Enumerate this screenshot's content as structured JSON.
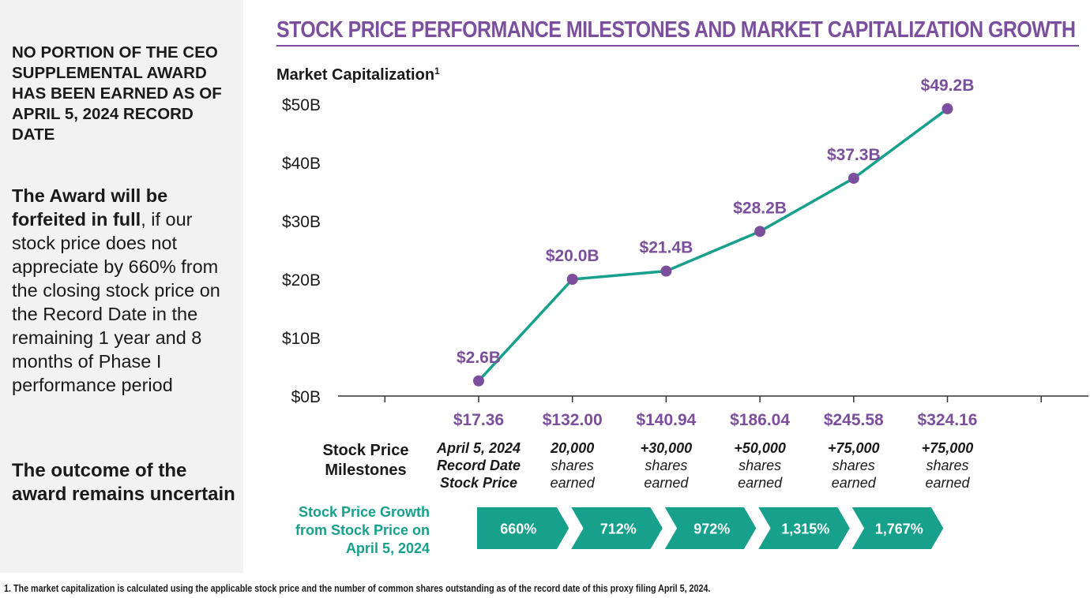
{
  "sidebar": {
    "notice": "NO PORTION OF THE CEO SUPPLEMENTAL AWARD HAS BEEN EARNED AS OF APRIL 5, 2024 RECORD DATE",
    "award_bold": "The Award will be forfeited in full",
    "award_rest": ", if our stock price does not appreciate by 660% from the closing stock price on the Record Date in the remaining 1 year and 8 months of Phase I performance period",
    "outcome": "The outcome of the award remains uncertain"
  },
  "header": {
    "title": "STOCK PRICE PERFORMANCE MILESTONES AND MARKET CAPITALIZATION GROWTH"
  },
  "footnote": "1. The market capitalization is calculated using the applicable stock price and the number of common shares outstanding as of the record date of this proxy filing April 5, 2024.",
  "chart_data": {
    "type": "line",
    "ylabel": "Market Capitalization",
    "ylabel_sup": "1",
    "ylim": [
      0,
      50
    ],
    "y_ticks": [
      "$50B",
      "$40B",
      "$30B",
      "$20B",
      "$10B",
      "$0B"
    ],
    "y_tick_values": [
      50,
      40,
      30,
      20,
      10,
      0
    ],
    "categories": [
      "$17.36",
      "$132.00",
      "$140.94",
      "$186.04",
      "$245.58",
      "$324.16"
    ],
    "values": [
      2.6,
      20.0,
      21.4,
      28.2,
      37.3,
      49.2
    ],
    "data_labels": [
      "$2.6B",
      "$20.0B",
      "$21.4B",
      "$28.2B",
      "$37.3B",
      "$49.2B"
    ],
    "milestones_header": [
      "Stock Price",
      "Milestones"
    ],
    "milestones": [
      [
        "April 5, 2024",
        "Record Date",
        "Stock Price"
      ],
      [
        "20,000",
        "shares",
        "earned"
      ],
      [
        "+30,000",
        "shares",
        "earned"
      ],
      [
        "+50,000",
        "shares",
        "earned"
      ],
      [
        "+75,000",
        "shares",
        "earned"
      ],
      [
        "+75,000",
        "shares",
        "earned"
      ]
    ],
    "growth_header": [
      "Stock Price Growth",
      "from Stock Price on",
      "April 5, 2024"
    ],
    "growth": [
      "660%",
      "712%",
      "972%",
      "1,315%",
      "1,767%"
    ]
  },
  "colors": {
    "purple": "#7b4f9d",
    "teal": "#17a08b",
    "axis": "#333333",
    "sidebar_bg": "#f2f2f2"
  }
}
